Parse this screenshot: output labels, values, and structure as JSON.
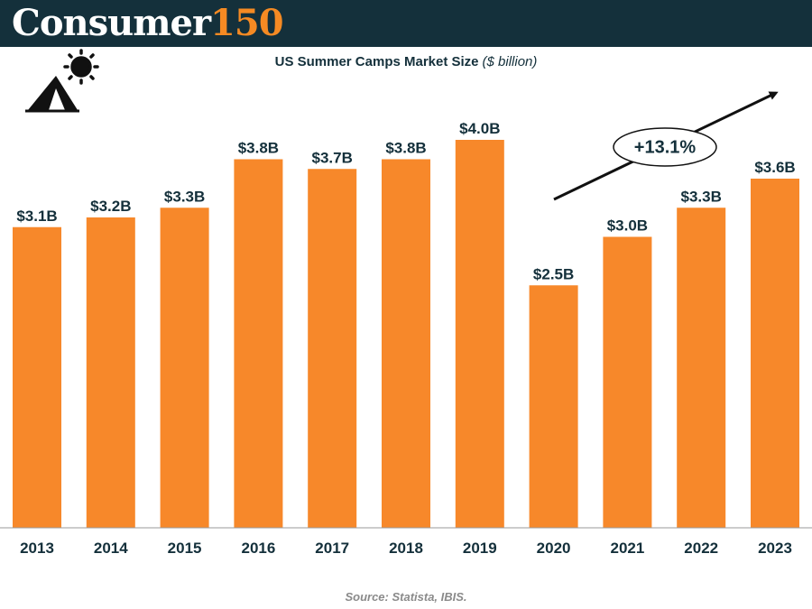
{
  "header": {
    "brand_main": "Consumer",
    "brand_accent": "150"
  },
  "colors": {
    "header_bg": "#14303b",
    "brand_accent": "#f58a23",
    "bar": "#f7882a",
    "text": "#14303b",
    "source": "#8a8a8a"
  },
  "icons": [
    "sun-icon",
    "tent-icon"
  ],
  "source": "Source: Statista, IBIS.",
  "chart_data": {
    "type": "bar",
    "title": "US Summer Camps Market Size",
    "subtitle": "($ billion)",
    "categories": [
      "2013",
      "2014",
      "2015",
      "2016",
      "2017",
      "2018",
      "2019",
      "2020",
      "2021",
      "2022",
      "2023"
    ],
    "values": [
      3.1,
      3.2,
      3.3,
      3.8,
      3.7,
      3.8,
      4.0,
      2.5,
      3.0,
      3.3,
      3.6
    ],
    "data_labels": [
      "$3.1B",
      "$3.2B",
      "$3.3B",
      "$3.8B",
      "$3.7B",
      "$3.8B",
      "$4.0B",
      "$2.5B",
      "$3.0B",
      "$3.3B",
      "$3.6B"
    ],
    "ylim": [
      0,
      4.0
    ],
    "grid": false,
    "annotation": {
      "text": "+13.1%",
      "type": "arrow",
      "from_category": "2020",
      "to_category": "2023"
    }
  }
}
